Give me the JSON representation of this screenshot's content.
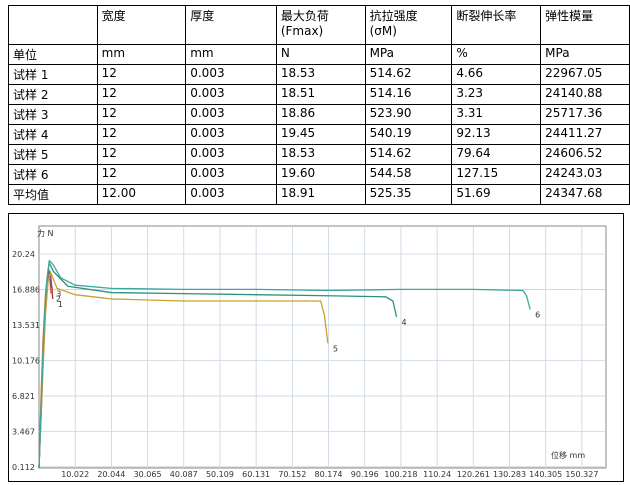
{
  "table": {
    "header": [
      "",
      "宽度",
      "厚度",
      [
        "最大负荷",
        "(Fmax)"
      ],
      [
        "抗拉强度",
        "(σM)"
      ],
      "断裂伸长率",
      "弹性模量"
    ],
    "units": [
      "单位",
      "mm",
      "mm",
      "N",
      "MPa",
      "%",
      "MPa"
    ],
    "rows": [
      [
        "试样 1",
        "12",
        "0.003",
        "18.53",
        "514.62",
        "4.66",
        "22967.05"
      ],
      [
        "试样 2",
        "12",
        "0.003",
        "18.51",
        "514.16",
        "3.23",
        "24140.88"
      ],
      [
        "试样 3",
        "12",
        "0.003",
        "18.86",
        "523.90",
        "3.31",
        "25717.36"
      ],
      [
        "试样 4",
        "12",
        "0.003",
        "19.45",
        "540.19",
        "92.13",
        "24411.27"
      ],
      [
        "试样 5",
        "12",
        "0.003",
        "18.53",
        "514.62",
        "79.64",
        "24606.52"
      ],
      [
        "试样 6",
        "12",
        "0.003",
        "19.60",
        "544.58",
        "127.15",
        "24243.03"
      ],
      [
        "平均值",
        "12.00",
        "0.003",
        "18.91",
        "525.35",
        "51.69",
        "24347.68"
      ]
    ]
  },
  "chart_data": {
    "type": "line",
    "y_label": "力 N",
    "x_label": "位移 mm",
    "xlim": [
      0,
      157
    ],
    "ylim": [
      0,
      22.9
    ],
    "xticks": [
      10.022,
      20.044,
      30.065,
      40.087,
      50.109,
      60.131,
      70.152,
      80.174,
      90.196,
      100.218,
      110.24,
      120.261,
      130.283,
      140.305,
      150.327
    ],
    "yticks": [
      0.112,
      3.467,
      6.821,
      10.176,
      13.531,
      16.886,
      20.24
    ],
    "grid": true,
    "series": [
      {
        "name": "1",
        "color": "#b03030",
        "x": [
          0,
          0.6,
          1.2,
          2,
          2.6,
          3.2,
          3.6,
          3.8
        ],
        "values": [
          0,
          6,
          12,
          16.5,
          18.53,
          18.2,
          17,
          16
        ]
      },
      {
        "name": "2",
        "color": "#e06a30",
        "x": [
          0,
          0.5,
          1.1,
          1.8,
          2.4,
          3,
          3.3
        ],
        "values": [
          0,
          6,
          12,
          16.5,
          18.51,
          17.8,
          16.5
        ]
      },
      {
        "name": "3",
        "color": "#7a4aa8",
        "x": [
          0,
          0.7,
          1.3,
          2,
          2.6,
          3.1,
          3.4
        ],
        "values": [
          0,
          6,
          12,
          16.8,
          18.86,
          18.3,
          17
        ]
      },
      {
        "name": "4",
        "color": "#2f8f80",
        "x": [
          0,
          0.5,
          1,
          1.5,
          2,
          2.8,
          4,
          8,
          20,
          40,
          60,
          80,
          96,
          98,
          99
        ],
        "values": [
          0,
          4.5,
          9.5,
          13.5,
          16.8,
          19.45,
          18.6,
          17.2,
          16.6,
          16.5,
          16.4,
          16.3,
          16.2,
          15.8,
          14.3
        ]
      },
      {
        "name": "5",
        "color": "#c9a232",
        "x": [
          0,
          0.6,
          1.2,
          1.8,
          2.5,
          3.2,
          5,
          10,
          20,
          40,
          60,
          78,
          79,
          80
        ],
        "values": [
          0,
          5,
          10,
          14.5,
          17.6,
          18.53,
          17,
          16.4,
          16,
          15.8,
          15.8,
          15.8,
          14.5,
          11.8
        ]
      },
      {
        "name": "6",
        "color": "#3aa8a0",
        "x": [
          0,
          0.5,
          1,
          1.5,
          2,
          2.5,
          3,
          4,
          6,
          10,
          20,
          40,
          60,
          80,
          100,
          120,
          134,
          135,
          136
        ],
        "values": [
          0,
          5,
          10,
          14,
          17,
          18.8,
          19.6,
          19.2,
          18,
          17.3,
          17,
          16.9,
          16.9,
          16.8,
          16.9,
          16.9,
          16.8,
          16.3,
          15
        ]
      }
    ]
  }
}
